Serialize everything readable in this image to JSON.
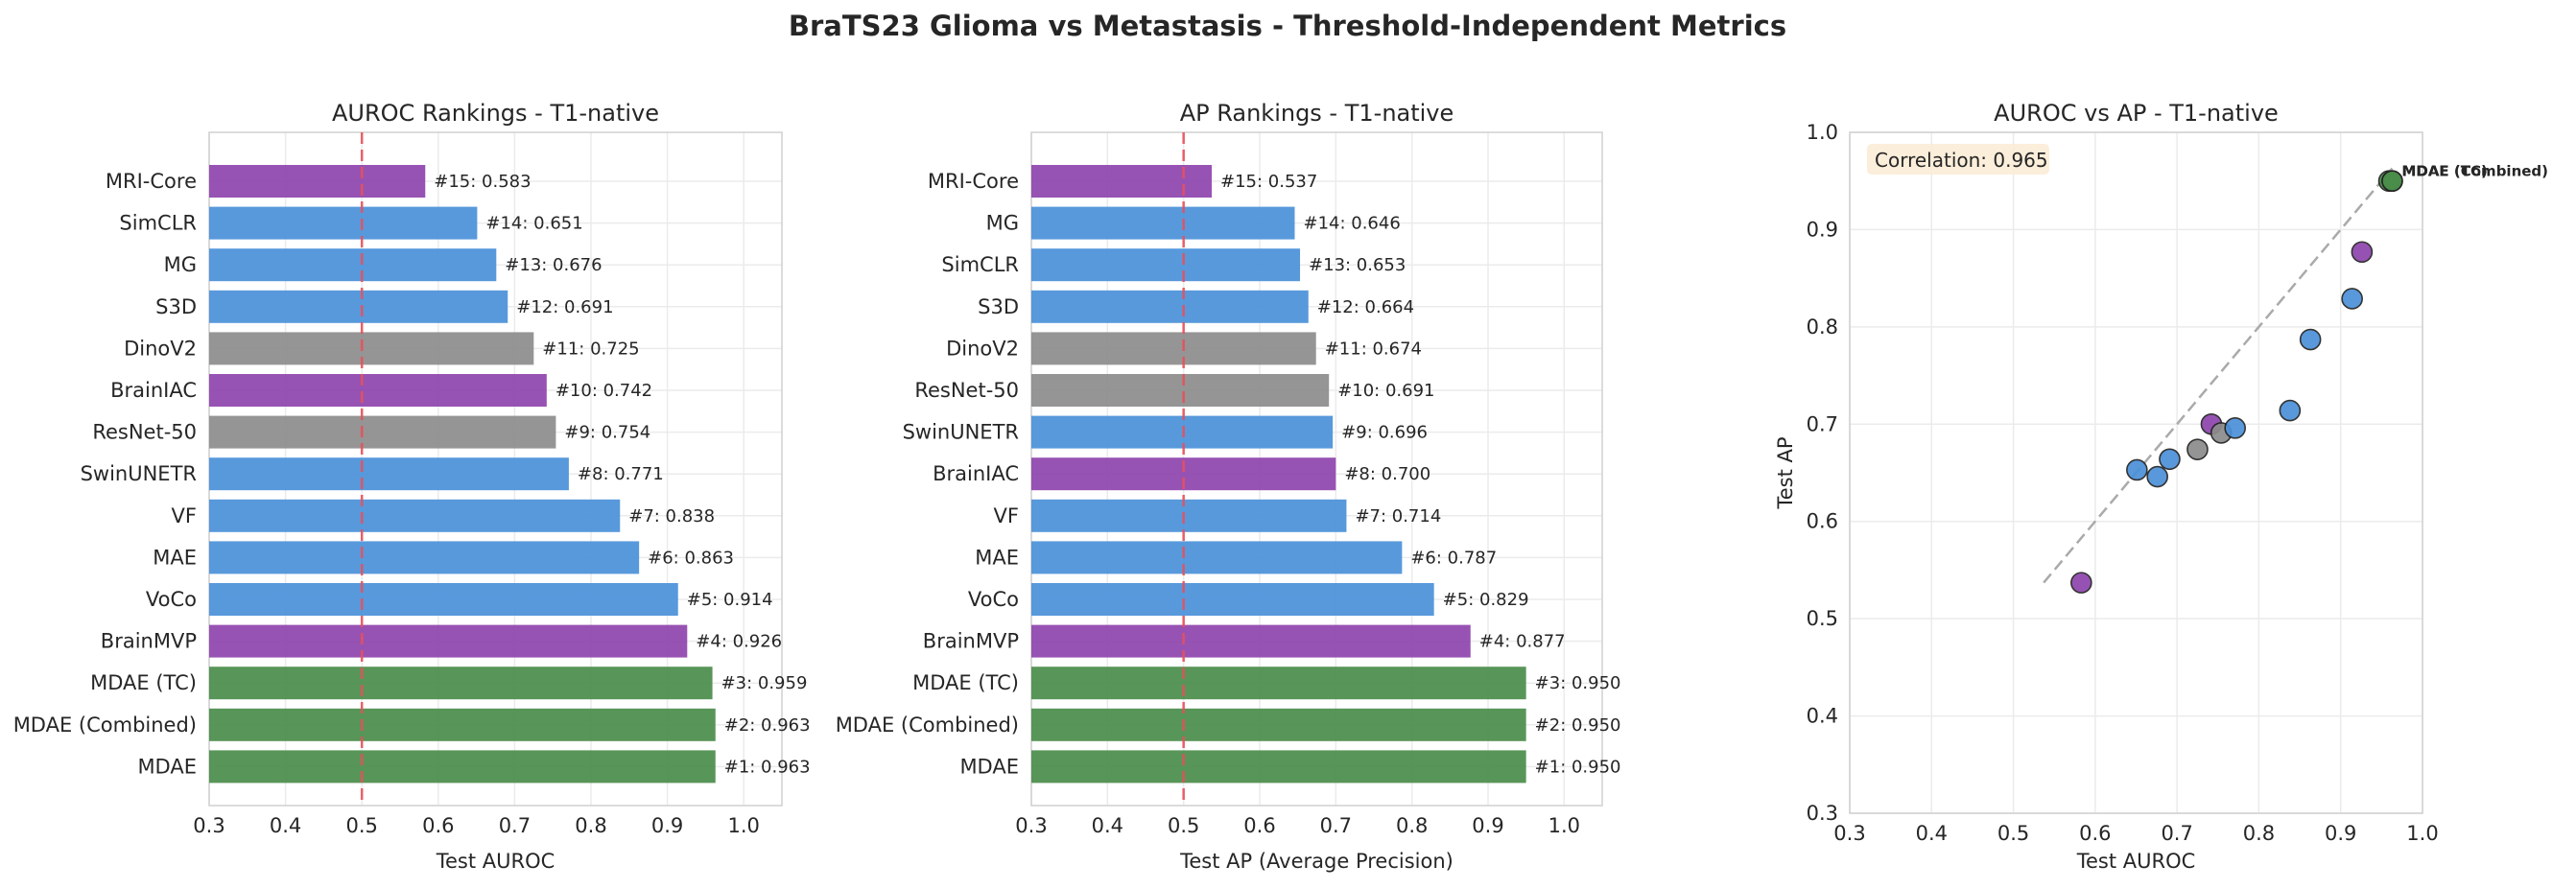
{
  "figure": {
    "title": "BraTS23 Glioma vs Metastasis - Threshold-Independent Metrics"
  },
  "colors": {
    "blue": "#4a90d9",
    "purple": "#8e44ad",
    "gray": "#8c8c8c",
    "green": "#4a8c4a",
    "reference_line": "#e8505b",
    "diagonal": "#aaaaaa",
    "grid": "#ebebeb",
    "annotation_bg": "#fbecd6"
  },
  "chart_data": [
    {
      "type": "bar",
      "orientation": "horizontal",
      "title": "AUROC Rankings - T1-native",
      "xlabel": "Test AUROC",
      "ylabel": "",
      "xlim": [
        0.3,
        1.05
      ],
      "xticks": [
        "0.3",
        "0.4",
        "0.5",
        "0.6",
        "0.7",
        "0.8",
        "0.9",
        "1.0"
      ],
      "reference_line_x": 0.5,
      "grid": true,
      "categories": [
        "MRI-Core",
        "SimCLR",
        "MG",
        "S3D",
        "DinoV2",
        "BrainIAC",
        "ResNet-50",
        "SwinUNETR",
        "VF",
        "MAE",
        "VoCo",
        "BrainMVP",
        "MDAE (TC)",
        "MDAE (Combined)",
        "MDAE"
      ],
      "values": [
        0.583,
        0.651,
        0.676,
        0.691,
        0.725,
        0.742,
        0.754,
        0.771,
        0.838,
        0.863,
        0.914,
        0.926,
        0.959,
        0.963,
        0.963
      ],
      "labels": [
        "#15: 0.583",
        "#14: 0.651",
        "#13: 0.676",
        "#12: 0.691",
        "#11: 0.725",
        "#10: 0.742",
        "#9: 0.754",
        "#8: 0.771",
        "#7: 0.838",
        "#6: 0.863",
        "#5: 0.914",
        "#4: 0.926",
        "#3: 0.959",
        "#2: 0.963",
        "#1: 0.963"
      ],
      "bar_colors": [
        "purple",
        "blue",
        "blue",
        "blue",
        "gray",
        "purple",
        "gray",
        "blue",
        "blue",
        "blue",
        "blue",
        "purple",
        "green",
        "green",
        "green"
      ]
    },
    {
      "type": "bar",
      "orientation": "horizontal",
      "title": "AP Rankings - T1-native",
      "xlabel": "Test AP (Average Precision)",
      "ylabel": "",
      "xlim": [
        0.3,
        1.05
      ],
      "xticks": [
        "0.3",
        "0.4",
        "0.5",
        "0.6",
        "0.7",
        "0.8",
        "0.9",
        "1.0"
      ],
      "reference_line_x": 0.5,
      "grid": true,
      "categories": [
        "MRI-Core",
        "MG",
        "SimCLR",
        "S3D",
        "DinoV2",
        "ResNet-50",
        "SwinUNETR",
        "BrainIAC",
        "VF",
        "MAE",
        "VoCo",
        "BrainMVP",
        "MDAE (TC)",
        "MDAE (Combined)",
        "MDAE"
      ],
      "values": [
        0.537,
        0.646,
        0.653,
        0.664,
        0.674,
        0.691,
        0.696,
        0.7,
        0.714,
        0.787,
        0.829,
        0.877,
        0.95,
        0.95,
        0.95
      ],
      "labels": [
        "#15: 0.537",
        "#14: 0.646",
        "#13: 0.653",
        "#12: 0.664",
        "#11: 0.674",
        "#10: 0.691",
        "#9: 0.696",
        "#8: 0.700",
        "#7: 0.714",
        "#6: 0.787",
        "#5: 0.829",
        "#4: 0.877",
        "#3: 0.950",
        "#2: 0.950",
        "#1: 0.950"
      ],
      "bar_colors": [
        "purple",
        "blue",
        "blue",
        "blue",
        "gray",
        "gray",
        "blue",
        "purple",
        "blue",
        "blue",
        "blue",
        "purple",
        "green",
        "green",
        "green"
      ]
    },
    {
      "type": "scatter",
      "title": "AUROC vs AP - T1-native",
      "xlabel": "Test AUROC",
      "ylabel": "Test AP",
      "xlim": [
        0.3,
        1.0
      ],
      "ylim": [
        0.3,
        1.0
      ],
      "xticks": [
        "0.3",
        "0.4",
        "0.5",
        "0.6",
        "0.7",
        "0.8",
        "0.9",
        "1.0"
      ],
      "yticks": [
        "0.3",
        "0.4",
        "0.5",
        "0.6",
        "0.7",
        "0.8",
        "0.9",
        "1.0"
      ],
      "grid": true,
      "annotation": "Correlation: 0.965",
      "diagonal": [
        0.537,
        0.963
      ],
      "point_labels": [
        "MDAE",
        "MDAE (Combined)",
        "MDAE (TC)"
      ],
      "points": [
        {
          "name": "MRI-Core",
          "x": 0.583,
          "y": 0.537,
          "color": "purple"
        },
        {
          "name": "SimCLR",
          "x": 0.651,
          "y": 0.653,
          "color": "blue"
        },
        {
          "name": "MG",
          "x": 0.676,
          "y": 0.646,
          "color": "blue"
        },
        {
          "name": "S3D",
          "x": 0.691,
          "y": 0.664,
          "color": "blue"
        },
        {
          "name": "DinoV2",
          "x": 0.725,
          "y": 0.674,
          "color": "gray"
        },
        {
          "name": "BrainIAC",
          "x": 0.742,
          "y": 0.7,
          "color": "purple"
        },
        {
          "name": "ResNet-50",
          "x": 0.754,
          "y": 0.691,
          "color": "gray"
        },
        {
          "name": "SwinUNETR",
          "x": 0.771,
          "y": 0.696,
          "color": "blue"
        },
        {
          "name": "VF",
          "x": 0.838,
          "y": 0.714,
          "color": "blue"
        },
        {
          "name": "MAE",
          "x": 0.863,
          "y": 0.787,
          "color": "blue"
        },
        {
          "name": "VoCo",
          "x": 0.914,
          "y": 0.829,
          "color": "blue"
        },
        {
          "name": "BrainMVP",
          "x": 0.926,
          "y": 0.877,
          "color": "purple"
        },
        {
          "name": "MDAE (TC)",
          "x": 0.959,
          "y": 0.95,
          "color": "green"
        },
        {
          "name": "MDAE (Combined)",
          "x": 0.963,
          "y": 0.95,
          "color": "green"
        },
        {
          "name": "MDAE",
          "x": 0.963,
          "y": 0.95,
          "color": "green"
        }
      ]
    }
  ]
}
